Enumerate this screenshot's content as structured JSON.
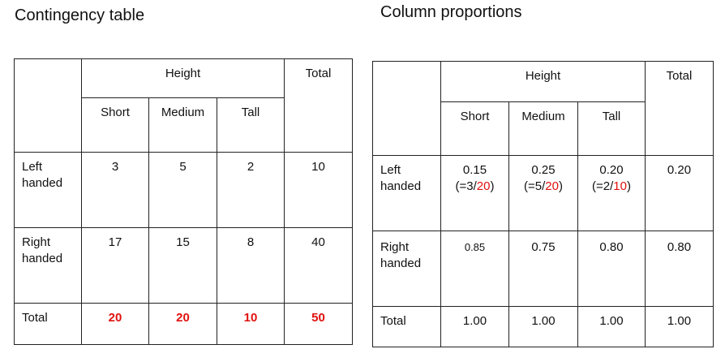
{
  "contingency": {
    "title": "Contingency table",
    "group_header": "Height",
    "total_header": "Total",
    "columns": [
      "Short",
      "Medium",
      "Tall"
    ],
    "rows": [
      {
        "label_line1": "Left",
        "label_line2": "handed",
        "values": [
          "3",
          "5",
          "2"
        ],
        "total": "10"
      },
      {
        "label_line1": "Right",
        "label_line2": "handed",
        "values": [
          "17",
          "15",
          "8"
        ],
        "total": "40"
      }
    ],
    "total_row": {
      "label": "Total",
      "values": [
        "20",
        "20",
        "10"
      ],
      "total": "50"
    }
  },
  "proportions": {
    "title": "Column proportions",
    "group_header": "Height",
    "total_header": "Total",
    "columns": [
      "Short",
      "Medium",
      "Tall"
    ],
    "rows": [
      {
        "label_line1": "Left",
        "label_line2": "handed",
        "values": [
          "0.15",
          "0.25",
          "0.20"
        ],
        "notes": [
          {
            "pre": "(=3/",
            "den": "20",
            "post": ")"
          },
          {
            "pre": "(=5/",
            "den": "20",
            "post": ")"
          },
          {
            "pre": "(=2/",
            "den": "10",
            "post": ")"
          }
        ],
        "total": "0.20"
      },
      {
        "label_line1": "Right",
        "label_line2": "handed",
        "values": [
          "0.85",
          "0.75",
          "0.80"
        ],
        "total": "0.80"
      }
    ],
    "total_row": {
      "label": "Total",
      "values": [
        "1.00",
        "1.00",
        "1.00"
      ],
      "total": "1.00"
    }
  },
  "colors": {
    "highlight": "#e0110f",
    "border": "#222222",
    "text": "#111111"
  }
}
